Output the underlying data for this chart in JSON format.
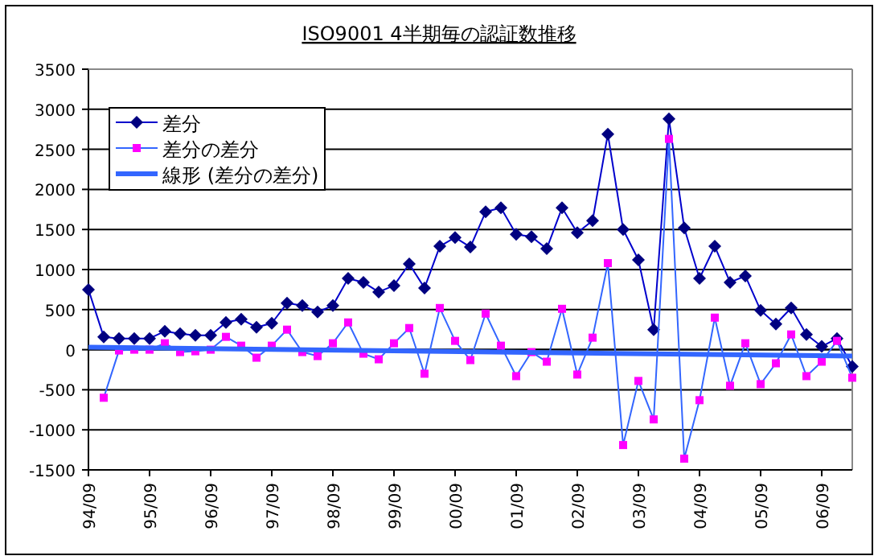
{
  "chart_data": {
    "type": "line",
    "title": "ISO9001 4半期毎の認証数推移",
    "categories": [
      "94/09",
      null,
      null,
      null,
      "95/09",
      null,
      null,
      null,
      "96/09",
      null,
      null,
      null,
      "97/09",
      null,
      null,
      null,
      "98/09",
      null,
      null,
      null,
      "99/09",
      null,
      null,
      null,
      "00/09",
      null,
      null,
      null,
      "01/09",
      null,
      null,
      null,
      "02/09",
      null,
      null,
      null,
      "03/09",
      null,
      null,
      null,
      "04/09",
      null,
      null,
      null,
      "05/09",
      null,
      null,
      null,
      "06/09",
      null,
      null
    ],
    "series": [
      {
        "name": "差分",
        "color": "#000080",
        "marker": "diamond",
        "values": [
          750,
          160,
          140,
          140,
          140,
          230,
          200,
          180,
          180,
          340,
          380,
          280,
          330,
          580,
          550,
          470,
          550,
          890,
          840,
          720,
          800,
          1070,
          770,
          1290,
          1400,
          1280,
          1720,
          1770,
          1440,
          1410,
          1260,
          1770,
          1460,
          1610,
          2690,
          1500,
          1120,
          250,
          2880,
          1520,
          890,
          1290,
          840,
          920,
          490,
          320,
          520,
          190,
          40,
          140,
          -210
        ]
      },
      {
        "name": "差分の差分",
        "color": "#ff00ff",
        "marker": "square",
        "values": [
          null,
          -600,
          -10,
          0,
          0,
          80,
          -30,
          -20,
          0,
          160,
          50,
          -100,
          50,
          250,
          -30,
          -80,
          80,
          340,
          -50,
          -120,
          80,
          270,
          -300,
          520,
          110,
          -130,
          450,
          50,
          -330,
          -30,
          -150,
          510,
          -310,
          150,
          1080,
          -1190,
          -390,
          -870,
          2630,
          -1360,
          -630,
          400,
          -450,
          80,
          -430,
          -170,
          190,
          -330,
          -150,
          110,
          -350
        ]
      },
      {
        "name": "線形 (差分の差分)",
        "color": "#3366ff",
        "marker": "none",
        "values": [
          30,
          null,
          null,
          null,
          null,
          null,
          null,
          null,
          null,
          null,
          null,
          null,
          null,
          null,
          null,
          null,
          null,
          null,
          null,
          null,
          null,
          null,
          null,
          null,
          null,
          null,
          null,
          null,
          null,
          null,
          null,
          null,
          null,
          null,
          null,
          null,
          null,
          null,
          null,
          null,
          null,
          null,
          null,
          null,
          null,
          null,
          null,
          null,
          null,
          null,
          -80
        ]
      }
    ],
    "ylim": [
      -1500,
      3500
    ],
    "yticks": [
      -1500,
      -1000,
      -500,
      0,
      500,
      1000,
      1500,
      2000,
      2500,
      3000,
      3500
    ],
    "grid": "y",
    "legend": "top left"
  }
}
